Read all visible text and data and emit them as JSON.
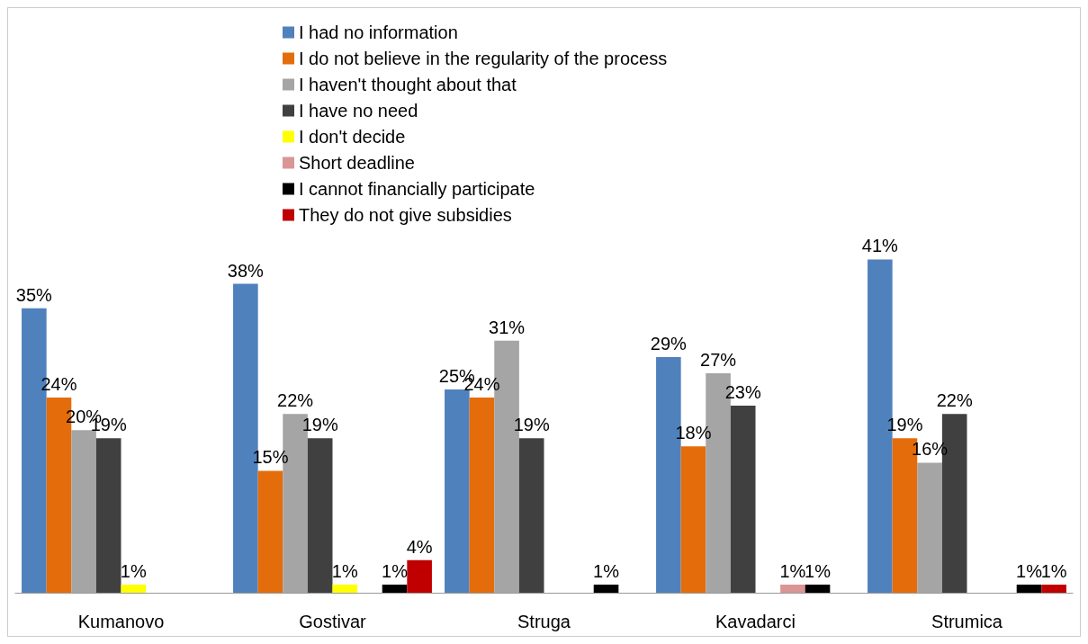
{
  "chart_data": {
    "type": "bar",
    "categories": [
      "Kumanovo",
      "Gostivar",
      "Struga",
      "Kavadarci",
      "Strumica"
    ],
    "legend": "top",
    "grid": false,
    "series": [
      {
        "name": "I had no information",
        "color": "#4f81bd",
        "values": [
          35,
          38,
          25,
          29,
          41
        ],
        "value_labels": [
          "35%",
          "38%",
          "25%",
          "29%",
          "41%"
        ]
      },
      {
        "name": "I do not believe in the regularity of the process",
        "color": "#e46c0a",
        "values": [
          24,
          15,
          24,
          18,
          19
        ],
        "value_labels": [
          "24%",
          "15%",
          "24%",
          "18%",
          "19%"
        ]
      },
      {
        "name": "I haven't thought about that",
        "color": "#a5a5a5",
        "values": [
          20,
          22,
          31,
          27,
          16
        ],
        "value_labels": [
          "20%",
          "22%",
          "31%",
          "27%",
          "16%"
        ]
      },
      {
        "name": "I have no need",
        "color": "#404040",
        "values": [
          19,
          19,
          19,
          23,
          22
        ],
        "value_labels": [
          "19%",
          "19%",
          "19%",
          "23%",
          "22%"
        ]
      },
      {
        "name": "I don't decide",
        "color": "#ffff00",
        "values": [
          1,
          1,
          null,
          null,
          null
        ],
        "value_labels": [
          "1%",
          "1%",
          null,
          null,
          null
        ]
      },
      {
        "name": "Short deadline",
        "color": "#d99694",
        "values": [
          null,
          null,
          null,
          1,
          null
        ],
        "value_labels": [
          null,
          null,
          null,
          "1%",
          null
        ]
      },
      {
        "name": "I cannot financially participate",
        "color": "#000000",
        "values": [
          null,
          1,
          1,
          1,
          1
        ],
        "value_labels": [
          null,
          "1%",
          "1%",
          "1%",
          "1%"
        ]
      },
      {
        "name": "They do not give subsidies",
        "color": "#c00000",
        "values": [
          null,
          4,
          null,
          null,
          1
        ],
        "value_labels": [
          null,
          "4%",
          null,
          null,
          "1%"
        ]
      }
    ]
  }
}
